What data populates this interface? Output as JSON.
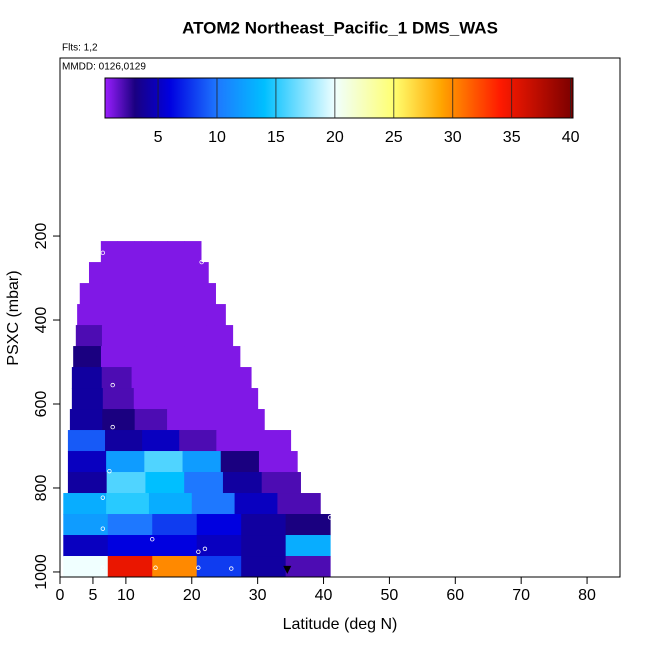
{
  "chart_data": {
    "type": "curtain",
    "title": "ATOM2 Northeast_Pacific_1 DMS_WAS",
    "flights_label": "Flts: 1,2",
    "date_label": "MMDD: 0126,0129",
    "x_label": "Latitude (deg N)",
    "y_label": "PSXC (mbar)",
    "xlim": [
      0,
      85
    ],
    "xticks": [
      0,
      5,
      10,
      20,
      30,
      40,
      50,
      60,
      70,
      80
    ],
    "ylim": [
      1012,
      -224
    ],
    "yticks": [
      200,
      400,
      600,
      800,
      1000
    ],
    "band_depth": 50,
    "bands": [
      {
        "p_top": 212,
        "lat_start": 6.2,
        "lat_end": 21.4,
        "values": [
          1,
          1,
          1,
          1,
          1,
          1
        ]
      },
      {
        "p_top": 262,
        "lat_start": 4.4,
        "lat_end": 22.5,
        "values": [
          1,
          1,
          1,
          1,
          1,
          1
        ]
      },
      {
        "p_top": 312,
        "lat_start": 3.0,
        "lat_end": 23.6,
        "values": [
          1,
          1,
          1,
          1,
          1,
          1
        ]
      },
      {
        "p_top": 362,
        "lat_start": 2.6,
        "lat_end": 25.1,
        "values": [
          1,
          1,
          1,
          1,
          1,
          1
        ]
      },
      {
        "p_top": 412,
        "lat_start": 2.4,
        "lat_end": 26.2,
        "values": [
          2,
          1,
          1,
          1,
          1,
          1
        ]
      },
      {
        "p_top": 462,
        "lat_start": 2.0,
        "lat_end": 27.3,
        "values": [
          3,
          1,
          1,
          1,
          1,
          1
        ]
      },
      {
        "p_top": 512,
        "lat_start": 1.8,
        "lat_end": 29.0,
        "values": [
          4,
          2,
          1,
          1,
          1,
          1
        ]
      },
      {
        "p_top": 562,
        "lat_start": 1.8,
        "lat_end": 30.0,
        "values": [
          4,
          2,
          1,
          1,
          1,
          1
        ]
      },
      {
        "p_top": 612,
        "lat_start": 1.5,
        "lat_end": 31.0,
        "values": [
          4,
          3,
          2,
          1,
          1,
          1
        ]
      },
      {
        "p_top": 662,
        "lat_start": 1.2,
        "lat_end": 35.0,
        "values": [
          9,
          4,
          5,
          2,
          1,
          1
        ]
      },
      {
        "p_top": 712,
        "lat_start": 1.2,
        "lat_end": 36.0,
        "values": [
          5,
          12,
          16,
          12,
          3,
          1
        ]
      },
      {
        "p_top": 762,
        "lat_start": 1.2,
        "lat_end": 36.5,
        "values": [
          4,
          16,
          14,
          10,
          4,
          2
        ]
      },
      {
        "p_top": 812,
        "lat_start": 0.5,
        "lat_end": 39.5,
        "values": [
          13,
          15,
          13,
          10,
          5,
          2
        ]
      },
      {
        "p_top": 862,
        "lat_start": 0.5,
        "lat_end": 41.0,
        "values": [
          12,
          10,
          8,
          6,
          4,
          3
        ]
      },
      {
        "p_top": 912,
        "lat_start": 0.5,
        "lat_end": 41.0,
        "values": [
          5,
          6,
          6,
          5,
          4,
          13
        ]
      },
      {
        "p_top": 962,
        "lat_start": 0.5,
        "lat_end": 41.0,
        "values": [
          20,
          35,
          30,
          8,
          4,
          2
        ]
      }
    ],
    "samples": {
      "x": [
        2.5,
        6.5,
        21.5,
        8,
        8,
        7.5,
        6.5,
        41,
        6.5,
        14,
        21,
        22,
        6.5,
        14.5,
        21,
        26
      ],
      "y": [
        330,
        240,
        262,
        555,
        655,
        760,
        823,
        870,
        897,
        922,
        952,
        945,
        990,
        990,
        990,
        992
      ]
    },
    "marker": {
      "x": 34.5,
      "y": 995
    },
    "clim": [
      0.5,
      40.2
    ],
    "cticks": [
      5,
      10,
      15,
      20,
      25,
      30,
      35,
      40
    ],
    "colormap": [
      {
        "value": 0.5,
        "color": "#9a1eff"
      },
      {
        "value": 3,
        "color": "#1a0080"
      },
      {
        "value": 6,
        "color": "#0000e0"
      },
      {
        "value": 10,
        "color": "#1e78ff"
      },
      {
        "value": 14,
        "color": "#00bfff"
      },
      {
        "value": 20,
        "color": "#f0ffff"
      },
      {
        "value": 25,
        "color": "#ffff70"
      },
      {
        "value": 29,
        "color": "#ffa500"
      },
      {
        "value": 34,
        "color": "#ff1a00"
      },
      {
        "value": 40.2,
        "color": "#7a0000"
      }
    ]
  }
}
